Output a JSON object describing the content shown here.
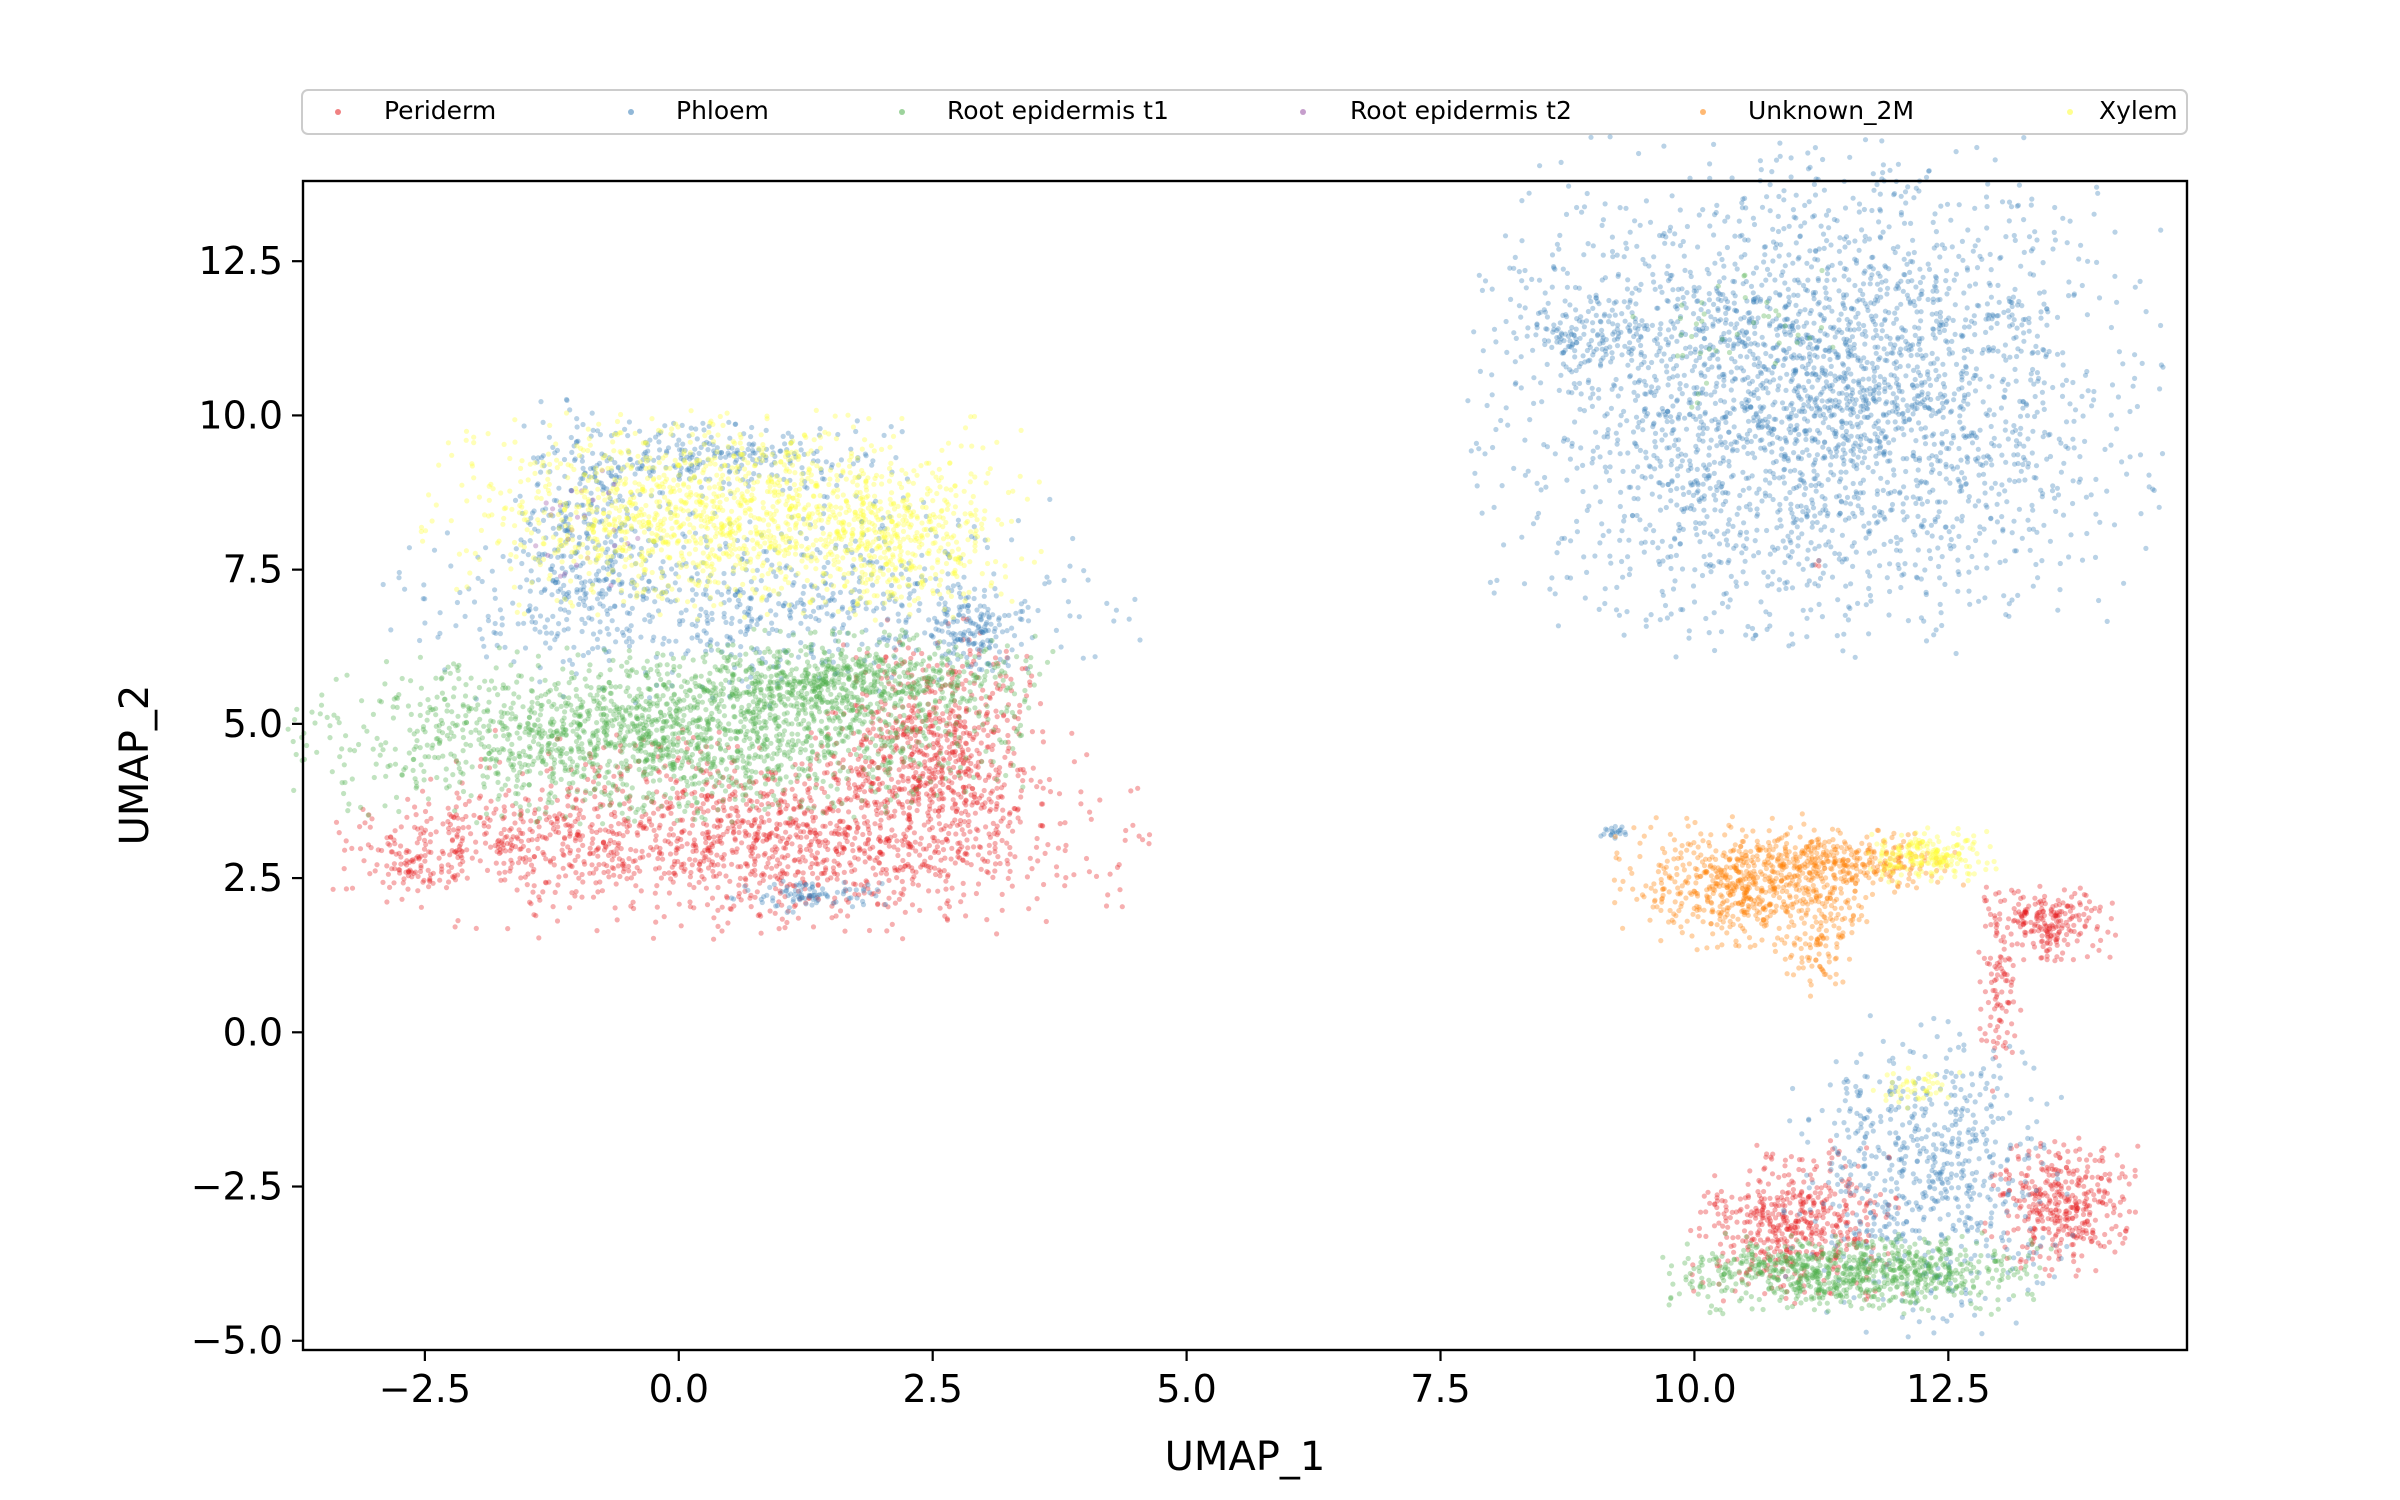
{
  "chart_data": {
    "type": "scatter",
    "title": "",
    "xlabel": "UMAP_1",
    "ylabel": "UMAP_2",
    "xlim": [
      -3.7,
      14.85
    ],
    "ylim": [
      -5.15,
      13.8
    ],
    "xticks": [
      -2.5,
      0.0,
      2.5,
      5.0,
      7.5,
      10.0,
      12.5
    ],
    "xtick_labels": [
      "−2.5",
      "0.0",
      "2.5",
      "5.0",
      "7.5",
      "10.0",
      "12.5"
    ],
    "yticks": [
      -5.0,
      -2.5,
      0.0,
      2.5,
      5.0,
      7.5,
      10.0,
      12.5
    ],
    "ytick_labels": [
      "−5.0",
      "−2.5",
      "0.0",
      "2.5",
      "5.0",
      "7.5",
      "10.0",
      "12.5"
    ],
    "grid": false,
    "legend_position": "top, above plot",
    "series": [
      {
        "name": "Periderm",
        "color": "#e41a1c",
        "regions": [
          {
            "cx": 1.0,
            "cy": 3.2,
            "rx": 1.9,
            "ry": 0.9,
            "n": 1400
          },
          {
            "cx": 2.5,
            "cy": 4.6,
            "rx": 0.6,
            "ry": 1.1,
            "n": 650
          },
          {
            "cx": -1.8,
            "cy": 3.1,
            "rx": 0.9,
            "ry": 0.55,
            "n": 260
          },
          {
            "cx": -2.6,
            "cy": 2.6,
            "rx": 0.25,
            "ry": 0.2,
            "n": 60
          },
          {
            "cx": 11.0,
            "cy": -3.1,
            "rx": 0.55,
            "ry": 0.7,
            "n": 500
          },
          {
            "cx": 13.6,
            "cy": -2.8,
            "rx": 0.4,
            "ry": 0.6,
            "n": 380
          },
          {
            "cx": 13.5,
            "cy": 1.8,
            "rx": 0.35,
            "ry": 0.35,
            "n": 220
          },
          {
            "cx": 13.0,
            "cy": 0.6,
            "rx": 0.12,
            "ry": 0.9,
            "n": 90
          },
          {
            "cx": 11.2,
            "cy": 7.6,
            "rx": 0.05,
            "ry": 0.05,
            "n": 3
          }
        ]
      },
      {
        "name": "Phloem",
        "color": "#377eb8",
        "regions": [
          {
            "cx": 11.2,
            "cy": 10.3,
            "rx": 1.8,
            "ry": 2.2,
            "n": 3000
          },
          {
            "cx": 8.9,
            "cy": 11.3,
            "rx": 0.45,
            "ry": 0.35,
            "n": 120
          },
          {
            "cx": -0.9,
            "cy": 8.0,
            "rx": 0.4,
            "ry": 1.2,
            "n": 280
          },
          {
            "cx": 0.5,
            "cy": 9.3,
            "rx": 1.0,
            "ry": 0.35,
            "n": 260
          },
          {
            "cx": 0.8,
            "cy": 7.0,
            "rx": 2.0,
            "ry": 0.9,
            "n": 700
          },
          {
            "cx": 2.9,
            "cy": 6.5,
            "rx": 0.25,
            "ry": 0.35,
            "n": 120
          },
          {
            "cx": 1.3,
            "cy": 2.2,
            "rx": 0.45,
            "ry": 0.15,
            "n": 90
          },
          {
            "cx": 12.3,
            "cy": -2.3,
            "rx": 0.75,
            "ry": 1.4,
            "n": 650
          },
          {
            "cx": 9.2,
            "cy": 3.25,
            "rx": 0.1,
            "ry": 0.06,
            "n": 20
          }
        ]
      },
      {
        "name": "Root epidermis t1",
        "color": "#4daf4a",
        "regions": [
          {
            "cx": -0.2,
            "cy": 4.8,
            "rx": 1.9,
            "ry": 0.75,
            "n": 1800
          },
          {
            "cx": 1.6,
            "cy": 5.7,
            "rx": 1.1,
            "ry": 0.45,
            "n": 650
          },
          {
            "cx": 11.6,
            "cy": -3.9,
            "rx": 1.0,
            "ry": 0.35,
            "n": 850
          },
          {
            "cx": 10.3,
            "cy": 11.4,
            "rx": 0.6,
            "ry": 0.7,
            "n": 40
          }
        ]
      },
      {
        "name": "Root epidermis t2",
        "color": "#984ea3",
        "regions": [
          {
            "cx": -0.9,
            "cy": 8.1,
            "rx": 0.3,
            "ry": 0.6,
            "n": 25
          }
        ]
      },
      {
        "name": "Unknown_2M",
        "color": "#ff7f00",
        "regions": [
          {
            "cx": 10.5,
            "cy": 2.4,
            "rx": 0.7,
            "ry": 0.6,
            "n": 650
          },
          {
            "cx": 11.5,
            "cy": 2.75,
            "rx": 0.6,
            "ry": 0.3,
            "n": 280
          },
          {
            "cx": 11.25,
            "cy": 1.5,
            "rx": 0.2,
            "ry": 0.5,
            "n": 90
          }
        ]
      },
      {
        "name": "Xylem",
        "color": "#ffff33",
        "regions": [
          {
            "cx": 0.5,
            "cy": 8.4,
            "rx": 1.6,
            "ry": 0.9,
            "n": 1400
          },
          {
            "cx": 2.2,
            "cy": 7.8,
            "rx": 0.5,
            "ry": 0.6,
            "n": 220
          },
          {
            "cx": 12.3,
            "cy": 2.85,
            "rx": 0.35,
            "ry": 0.25,
            "n": 200
          },
          {
            "cx": 12.2,
            "cy": -0.9,
            "rx": 0.25,
            "ry": 0.2,
            "n": 45
          }
        ]
      }
    ]
  }
}
